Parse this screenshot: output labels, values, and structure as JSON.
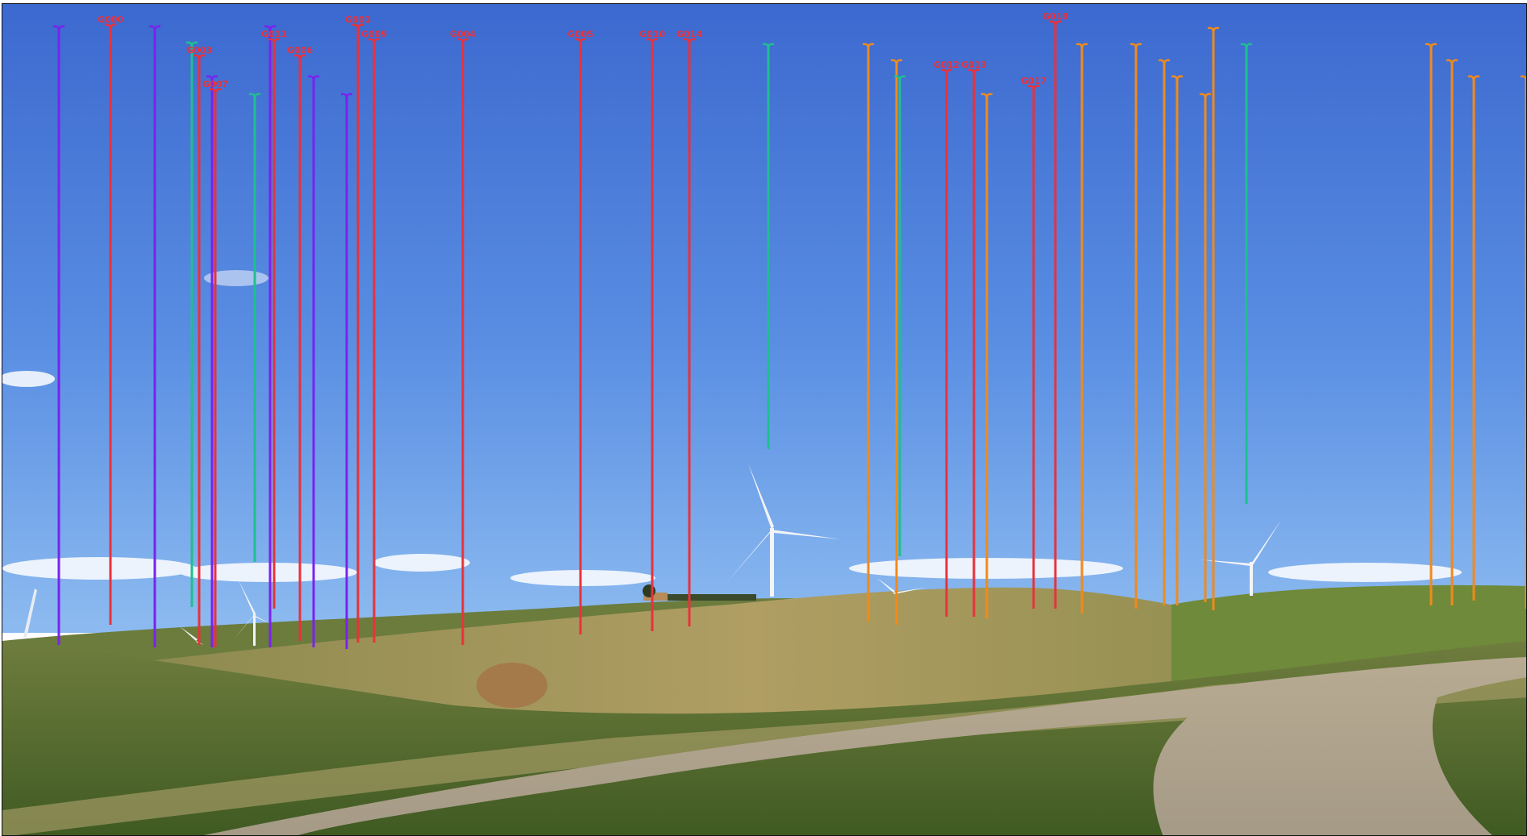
{
  "image": {
    "description_tags": [
      "landscape-photo",
      "wind-turbines",
      "rolling-hills",
      "gravel-road",
      "blue-sky"
    ]
  },
  "colors": {
    "sky_top": "#3f6fd0",
    "sky_bottom": "#7fb0ee",
    "field_green": "#5b7a32",
    "field_tan": "#a89a5e",
    "road": "#b8ad9a",
    "red_marker": "#e8323c",
    "purple_marker": "#7a22f0",
    "teal_marker": "#1fbf8f",
    "orange_marker": "#f08a1c"
  },
  "markers": [
    {
      "id": "m1",
      "color": "purple",
      "label": ""
    },
    {
      "id": "m2",
      "color": "red",
      "label": "G000"
    },
    {
      "id": "m3",
      "color": "purple",
      "label": ""
    },
    {
      "id": "m4",
      "color": "teal",
      "label": ""
    },
    {
      "id": "m5",
      "color": "red",
      "label": "G003"
    },
    {
      "id": "m6",
      "color": "purple",
      "label": ""
    },
    {
      "id": "m7",
      "color": "red",
      "label": "G007"
    },
    {
      "id": "m8",
      "color": "teal",
      "label": ""
    },
    {
      "id": "m9",
      "color": "purple",
      "label": ""
    },
    {
      "id": "m10",
      "color": "red",
      "label": "G011"
    },
    {
      "id": "m11",
      "color": "red",
      "label": "G006"
    },
    {
      "id": "m12",
      "color": "purple",
      "label": ""
    },
    {
      "id": "m13",
      "color": "purple",
      "label": ""
    },
    {
      "id": "m14",
      "color": "red",
      "label": "G001"
    },
    {
      "id": "m15",
      "color": "red",
      "label": "G009"
    },
    {
      "id": "m16",
      "color": "red",
      "label": "G004"
    },
    {
      "id": "m17",
      "color": "red",
      "label": "G005"
    },
    {
      "id": "m18",
      "color": "red",
      "label": "G010"
    },
    {
      "id": "m19",
      "color": "red",
      "label": "G014"
    },
    {
      "id": "m20",
      "color": "teal",
      "label": ""
    },
    {
      "id": "m21",
      "color": "orange",
      "label": ""
    },
    {
      "id": "m22",
      "color": "orange",
      "label": ""
    },
    {
      "id": "m23",
      "color": "teal",
      "label": ""
    },
    {
      "id": "m24",
      "color": "red",
      "label": "G012"
    },
    {
      "id": "m25",
      "color": "red",
      "label": "G013"
    },
    {
      "id": "m26",
      "color": "orange",
      "label": ""
    },
    {
      "id": "m27",
      "color": "red",
      "label": "G017"
    },
    {
      "id": "m28",
      "color": "red",
      "label": "G018"
    },
    {
      "id": "m29",
      "color": "orange",
      "label": ""
    },
    {
      "id": "m30",
      "color": "orange",
      "label": ""
    },
    {
      "id": "m31",
      "color": "orange",
      "label": ""
    },
    {
      "id": "m32",
      "color": "orange",
      "label": ""
    },
    {
      "id": "m33",
      "color": "orange",
      "label": ""
    },
    {
      "id": "m34",
      "color": "orange",
      "label": ""
    },
    {
      "id": "m35",
      "color": "teal",
      "label": ""
    },
    {
      "id": "m36",
      "color": "orange",
      "label": ""
    },
    {
      "id": "m37",
      "color": "orange",
      "label": ""
    },
    {
      "id": "m38",
      "color": "orange",
      "label": ""
    },
    {
      "id": "m39",
      "color": "orange",
      "label": ""
    }
  ]
}
